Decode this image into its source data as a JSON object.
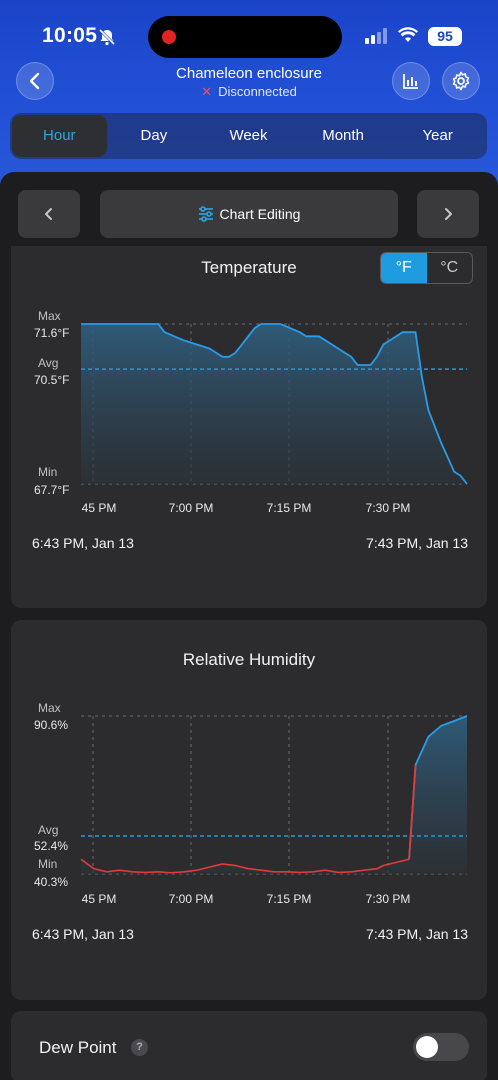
{
  "status_bar": {
    "time": "10:05",
    "battery": "95"
  },
  "header": {
    "title": "Chameleon enclosure",
    "status_icon": "✕",
    "status": "Disconnected"
  },
  "tabs": [
    {
      "label": "Hour",
      "active": true
    },
    {
      "label": "Day",
      "active": false
    },
    {
      "label": "Week",
      "active": false
    },
    {
      "label": "Month",
      "active": false
    },
    {
      "label": "Year",
      "active": false
    }
  ],
  "chart_nav": {
    "edit_label": "Chart Editing"
  },
  "colors": {
    "accent": "#2aa6e0",
    "temp_line": "#2a9be6",
    "humidity_low": "#e03a3a",
    "avg_line": "#1f9be0"
  },
  "temperature": {
    "title": "Temperature",
    "units": {
      "f": "°F",
      "c": "°C",
      "selected": "°F"
    },
    "max_label": "Max",
    "max_value": "71.6°F",
    "avg_label": "Avg",
    "avg_value": "70.5°F",
    "min_label": "Min",
    "min_value": "67.7°F",
    "x_ticks": [
      "45 PM",
      "7:00 PM",
      "7:15 PM",
      "7:30 PM"
    ],
    "range_start": "6:43 PM,  Jan 13",
    "range_end": "7:43 PM,  Jan 13"
  },
  "humidity": {
    "title": "Relative Humidity",
    "max_label": "Max",
    "max_value": "90.6%",
    "avg_label": "Avg",
    "avg_value": "52.4%",
    "min_label": "Min",
    "min_value": "40.3%",
    "x_ticks": [
      "45 PM",
      "7:00 PM",
      "7:15 PM",
      "7:30 PM"
    ],
    "range_start": "6:43 PM,  Jan 13",
    "range_end": "7:43 PM,  Jan 13"
  },
  "dew_point": {
    "label": "Dew Point",
    "help": "?",
    "enabled": false
  },
  "chart_data": [
    {
      "type": "area",
      "x_unit": "minutes after 6:43 PM",
      "ylim": [
        67.7,
        71.6
      ],
      "avg": 70.5,
      "x": [
        0,
        12,
        13,
        16,
        18,
        20,
        21,
        22,
        23,
        24,
        25,
        26,
        27,
        28,
        29,
        31,
        34,
        35,
        37,
        39,
        40,
        42,
        43,
        45,
        46,
        47,
        49,
        50,
        52,
        53,
        54,
        56,
        58,
        59,
        60
      ],
      "y": [
        71.6,
        71.6,
        71.4,
        71.2,
        71.1,
        71.0,
        70.9,
        70.8,
        70.8,
        70.9,
        71.1,
        71.3,
        71.5,
        71.6,
        71.6,
        71.6,
        71.4,
        71.3,
        71.3,
        71.1,
        71.0,
        70.8,
        70.6,
        70.6,
        70.8,
        71.1,
        71.3,
        71.4,
        71.4,
        70.3,
        69.5,
        68.7,
        68.0,
        67.9,
        67.7
      ]
    },
    {
      "type": "area",
      "x_unit": "minutes after 6:43 PM",
      "ylim": [
        40.3,
        90.6
      ],
      "avg": 52.4,
      "x": [
        0,
        2,
        4,
        6,
        8,
        10,
        12,
        14,
        16,
        18,
        20,
        22,
        24,
        26,
        28,
        30,
        32,
        34,
        36,
        38,
        40,
        42,
        44,
        46,
        47,
        48,
        49,
        50,
        51,
        52,
        54,
        56,
        58,
        60
      ],
      "y": [
        45,
        42,
        41,
        41.5,
        41,
        40.8,
        41,
        40.7,
        41,
        41.5,
        42.5,
        43.5,
        43,
        42,
        41.5,
        41,
        41,
        40.8,
        41,
        41.5,
        40.8,
        41,
        41.5,
        42,
        43,
        43.5,
        44,
        44.5,
        45,
        75,
        84,
        87.5,
        89,
        90.6
      ]
    }
  ]
}
